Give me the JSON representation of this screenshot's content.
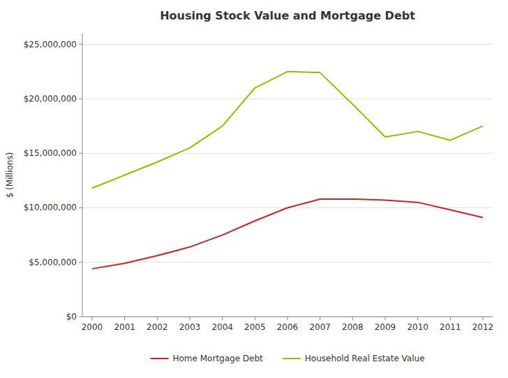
{
  "chart_data": {
    "type": "line",
    "title": "Housing Stock Value and Mortgage Debt",
    "y_label": "$ (Millions)",
    "x": [
      2000,
      2001,
      2002,
      2003,
      2004,
      2005,
      2006,
      2007,
      2008,
      2009,
      2010,
      2011,
      2012
    ],
    "series": [
      {
        "name": "Home Mortgage Debt",
        "color": "#cc2222",
        "values": [
          4400000,
          4900000,
          5600000,
          6400000,
          7500000,
          8800000,
          10000000,
          10800000,
          10800000,
          10700000,
          10500000,
          9800000,
          9100000
        ]
      },
      {
        "name": "Household Real Estate Value",
        "color": "#99bb00",
        "values": [
          11800000,
          13000000,
          14200000,
          15500000,
          17500000,
          21000000,
          22500000,
          22400000,
          19500000,
          16500000,
          17000000,
          16200000,
          17500000
        ]
      }
    ],
    "xlim": [
      1999.7,
      2012.3
    ],
    "xticks": [
      2000,
      2001,
      2002,
      2003,
      2004,
      2005,
      2006,
      2007,
      2008,
      2009,
      2010,
      2011,
      2012
    ],
    "ylim": [
      0,
      26000000
    ],
    "yticks": [
      {
        "value": 0,
        "label": "$0"
      },
      {
        "value": 5000000,
        "label": "$5,000,000"
      },
      {
        "value": 10000000,
        "label": "$10,000,000"
      },
      {
        "value": 15000000,
        "label": "$15,000,000"
      },
      {
        "value": 20000000,
        "label": "$20,000,000"
      },
      {
        "value": 25000000,
        "label": "$25,000,000"
      }
    ],
    "grid": true,
    "legend": "bottom"
  }
}
